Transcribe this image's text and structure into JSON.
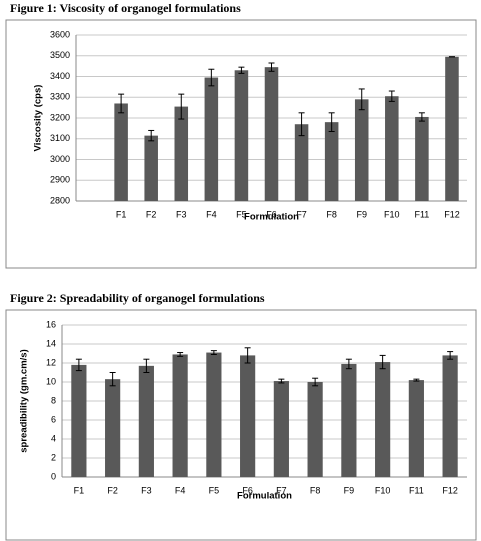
{
  "chart_data": [
    {
      "type": "bar",
      "title": "Figure 1: Viscosity of organogel formulations",
      "xlabel": "Formulation",
      "ylabel": "Viscosity (cps)",
      "categories": [
        null,
        "F1",
        "F2",
        "F3",
        "F4",
        "F5",
        "F6",
        "F7",
        "F8",
        "F9",
        "F10",
        "F11",
        "F12"
      ],
      "values": [
        null,
        3270,
        3115,
        3255,
        3395,
        3430,
        3445,
        3170,
        3180,
        3290,
        3305,
        3205,
        3495
      ],
      "errors": [
        null,
        45,
        25,
        60,
        40,
        15,
        20,
        55,
        45,
        50,
        25,
        20,
        0
      ],
      "color": "#595959",
      "ylim": [
        2800,
        3600
      ],
      "yticks": [
        2800,
        2900,
        3000,
        3100,
        3200,
        3300,
        3400,
        3500,
        3600
      ],
      "grid": true
    },
    {
      "type": "bar",
      "title": "Figure 2: Spreadability of organogel formulations",
      "xlabel": "Formulation",
      "ylabel": "spreadibility (gm.cm/s)",
      "categories": [
        "F1",
        "F2",
        "F3",
        "F4",
        "F5",
        "F6",
        "F7",
        "F8",
        "F9",
        "F10",
        "F11",
        "F12"
      ],
      "values": [
        11.8,
        10.3,
        11.7,
        12.9,
        13.1,
        12.8,
        10.1,
        10.0,
        11.9,
        12.1,
        10.2,
        12.8
      ],
      "errors": [
        0.6,
        0.7,
        0.7,
        0.2,
        0.2,
        0.8,
        0.2,
        0.4,
        0.5,
        0.7,
        0.1,
        0.4
      ],
      "color": "#595959",
      "ylim": [
        0,
        16
      ],
      "yticks": [
        0,
        2,
        4,
        6,
        8,
        10,
        12,
        14,
        16
      ],
      "grid": true
    }
  ]
}
